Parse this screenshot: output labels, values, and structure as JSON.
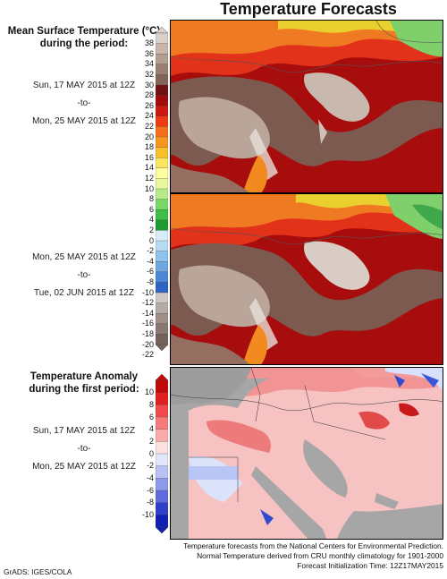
{
  "title": "Temperature Forecasts",
  "top_panel": {
    "heading_line1": "Mean Surface Temperature (°C)",
    "heading_line2": "during the period:",
    "period1": {
      "start": "Sun, 17 MAY 2015 at 12Z",
      "sep": "-to-",
      "end": "Mon, 25 MAY 2015 at 12Z"
    },
    "period2": {
      "start": "Mon, 25 MAY 2015 at 12Z",
      "sep": "-to-",
      "end": "Tue, 02 JUN 2015 at 12Z"
    },
    "colorbar_labels": [
      "38",
      "36",
      "34",
      "32",
      "30",
      "28",
      "26",
      "24",
      "22",
      "20",
      "18",
      "16",
      "14",
      "12",
      "10",
      "8",
      "6",
      "4",
      "2",
      "0",
      "-2",
      "-4",
      "-6",
      "-8",
      "-10",
      "-12",
      "-14",
      "-16",
      "-18",
      "-20",
      "-22"
    ],
    "colorbar_colors": [
      "#d9d0c9",
      "#c9b6ab",
      "#b59d8f",
      "#9c7f73",
      "#846459",
      "#701010",
      "#a00c0c",
      "#cc1a10",
      "#ee3b16",
      "#f5701c",
      "#f7961f",
      "#f9bf2a",
      "#fbe560",
      "#ffff9e",
      "#e8f89a",
      "#b6eb87",
      "#78d765",
      "#3fbf45",
      "#1f9a30",
      "#d8ebf8",
      "#b5daf3",
      "#8fc2ec",
      "#6ea8e3",
      "#4b87d7",
      "#2f63c4",
      "#cfc7c3",
      "#b6aaa4",
      "#9f8f88",
      "#8a7870",
      "#74625a"
    ]
  },
  "bottom_panel": {
    "heading_line1": "Temperature Anomaly",
    "heading_line2": "during the first period:",
    "period": {
      "start": "Sun, 17 MAY 2015 at 12Z",
      "sep": "-to-",
      "end": "Mon, 25 MAY 2015 at 12Z"
    },
    "colorbar_labels": [
      "10",
      "8",
      "6",
      "4",
      "2",
      "0",
      "-2",
      "-4",
      "-6",
      "-8",
      "-10"
    ],
    "colorbar_colors": [
      "#c00a0a",
      "#e02020",
      "#f04a4a",
      "#f77a7a",
      "#fbaaaa",
      "#fde0e0",
      "#e2e6fb",
      "#b7c1f3",
      "#8d99ea",
      "#5f6cdd",
      "#2f3fca",
      "#1020b0"
    ]
  },
  "footer": {
    "line1": "Temperature forecasts from the National Centers for Environmental Prediction.",
    "line2": "Normal Temperature derived from CRU monthly climatology for 1901-2000",
    "line3": "Forecast Initialization Time: 12Z17MAY2015"
  },
  "credit": "GrADS: IGES/COLA"
}
